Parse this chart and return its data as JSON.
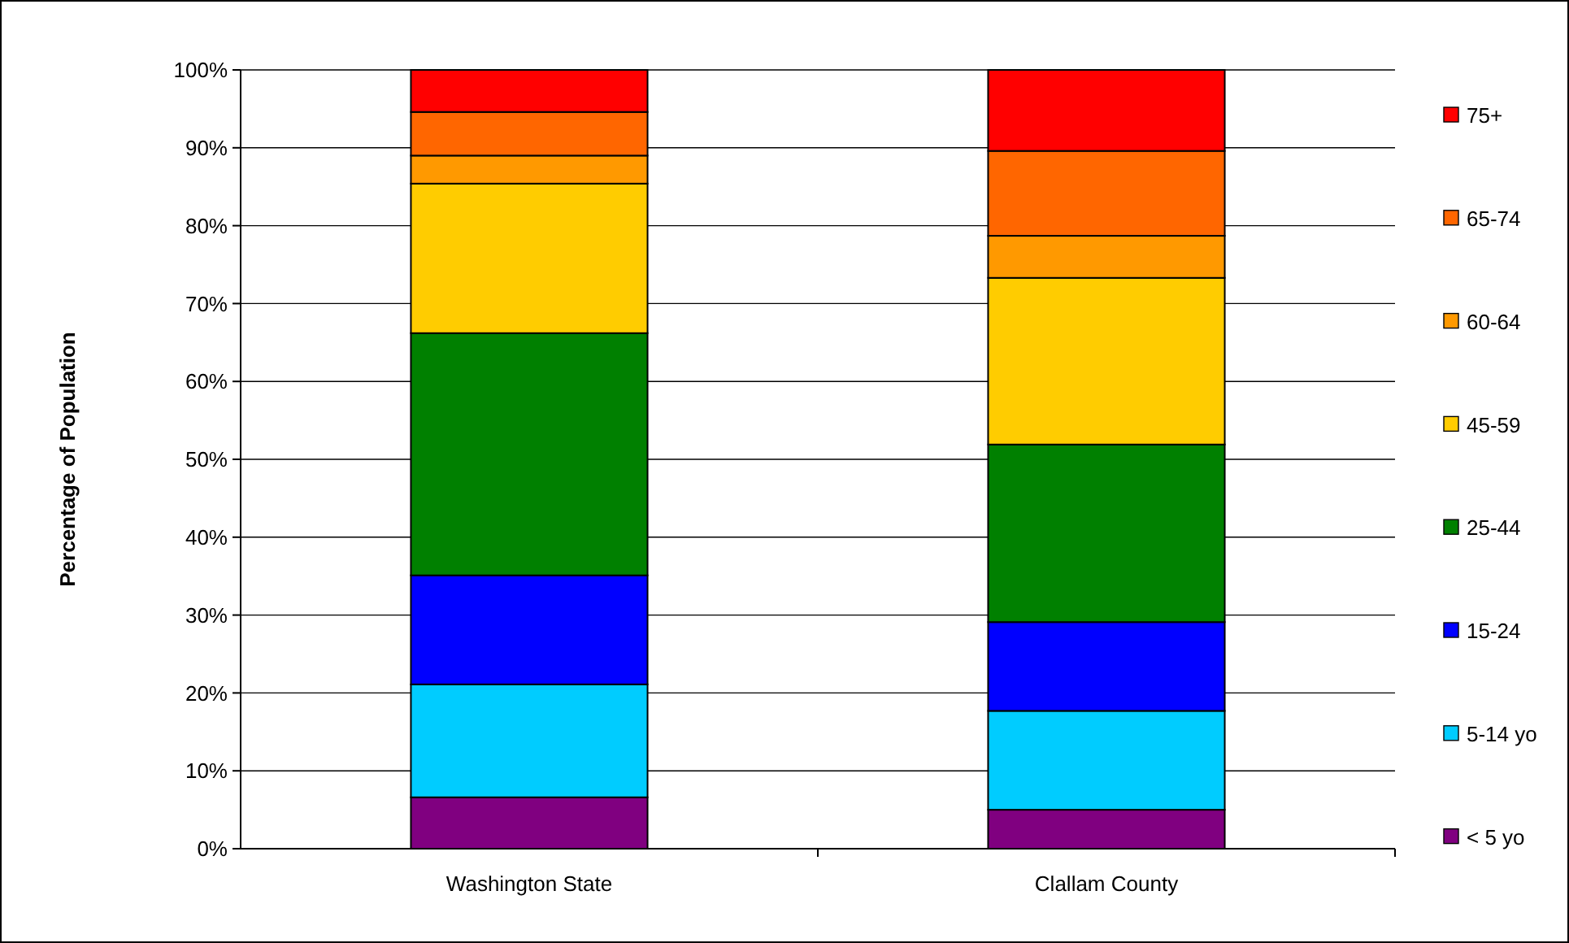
{
  "chart_data": {
    "type": "bar",
    "stacked": true,
    "ylabel": "Percentage of Population",
    "categories": [
      "Washington State",
      "Clallam County"
    ],
    "series": [
      {
        "name": "< 5 yo",
        "color": "#800080",
        "values": [
          6.6,
          5.0
        ]
      },
      {
        "name": "5-14 yo",
        "color": "#00ccff",
        "values": [
          14.5,
          12.7
        ]
      },
      {
        "name": "15-24",
        "color": "#0000ff",
        "values": [
          14.0,
          11.4
        ]
      },
      {
        "name": "25-44",
        "color": "#008000",
        "values": [
          31.1,
          22.8
        ]
      },
      {
        "name": "45-59",
        "color": "#ffcc00",
        "values": [
          19.2,
          21.4
        ]
      },
      {
        "name": "60-64",
        "color": "#ff9900",
        "values": [
          3.6,
          5.4
        ]
      },
      {
        "name": "65-74",
        "color": "#ff6600",
        "values": [
          5.6,
          10.9
        ]
      },
      {
        "name": "75+",
        "color": "#ff0000",
        "values": [
          5.4,
          10.4
        ]
      }
    ],
    "ylim": [
      0,
      100
    ],
    "yticks": [
      {
        "value": 0,
        "label": "0%"
      },
      {
        "value": 10,
        "label": "10%"
      },
      {
        "value": 20,
        "label": "20%"
      },
      {
        "value": 30,
        "label": "30%"
      },
      {
        "value": 40,
        "label": "40%"
      },
      {
        "value": 50,
        "label": "50%"
      },
      {
        "value": 60,
        "label": "60%"
      },
      {
        "value": 70,
        "label": "70%"
      },
      {
        "value": 80,
        "label": "80%"
      },
      {
        "value": 90,
        "label": "90%"
      },
      {
        "value": 100,
        "label": "100%"
      }
    ],
    "grid": "y",
    "legend": "right"
  }
}
